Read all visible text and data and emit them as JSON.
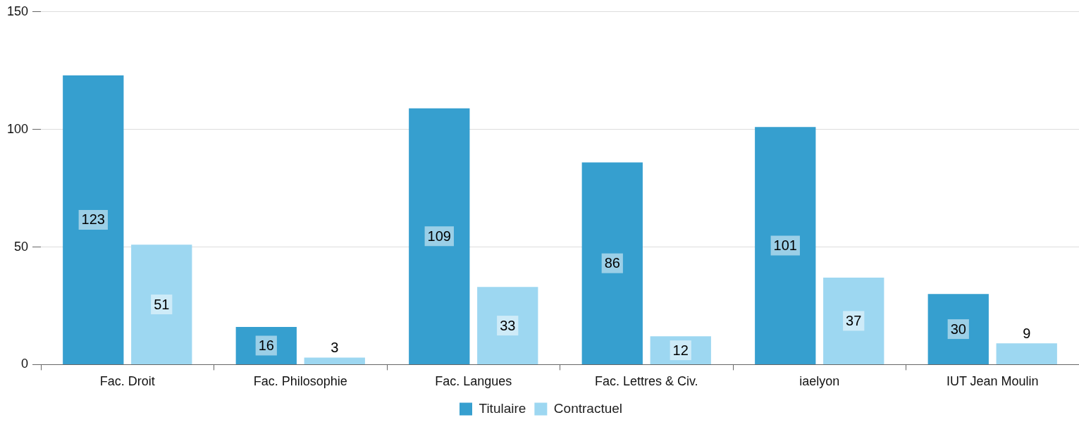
{
  "chart_data": {
    "type": "bar",
    "categories": [
      "Fac. Droit",
      "Fac. Philosophie",
      "Fac. Langues",
      "Fac. Lettres & Civ.",
      "iaelyon",
      "IUT Jean Moulin"
    ],
    "series": [
      {
        "name": "Titulaire",
        "color": "#369fcf",
        "values": [
          123,
          16,
          109,
          86,
          101,
          30
        ]
      },
      {
        "name": "Contractuel",
        "color": "#9dd7f1",
        "values": [
          51,
          3,
          33,
          12,
          37,
          9
        ]
      }
    ],
    "ylim": [
      0,
      150
    ],
    "yticks": [
      0,
      50,
      100,
      150
    ],
    "grid": "y",
    "legend": "bottom",
    "data_labels": true
  }
}
